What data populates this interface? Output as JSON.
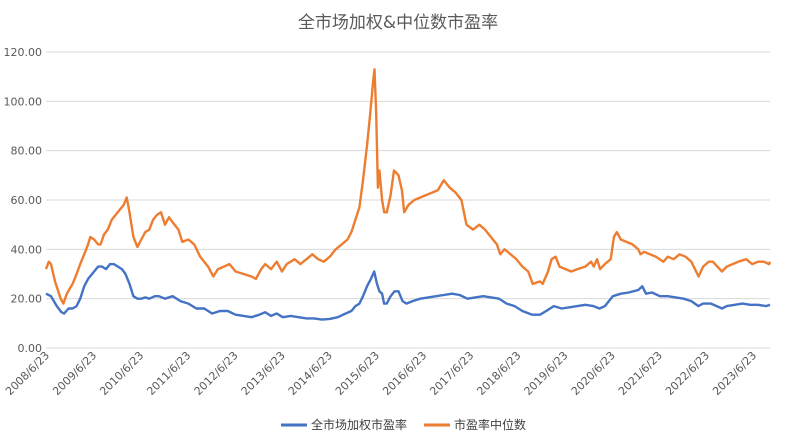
{
  "chart_data": {
    "type": "line",
    "title": "全市场加权&中位数市盈率",
    "xlabel": "",
    "ylabel": "",
    "ylim": [
      0,
      120
    ],
    "y_ticks": [
      "0.00",
      "20.00",
      "40.00",
      "60.00",
      "80.00",
      "100.00",
      "120.00"
    ],
    "x_ticks": [
      "2008/6/23",
      "2009/6/23",
      "2010/6/23",
      "2011/6/23",
      "2012/6/23",
      "2013/6/23",
      "2014/6/23",
      "2015/6/23",
      "2016/6/23",
      "2017/6/23",
      "2018/6/23",
      "2019/6/23",
      "2020/6/23",
      "2021/6/23",
      "2022/6/23",
      "2023/6/23"
    ],
    "x_range": [
      "2008-06-23",
      "2023-11-01"
    ],
    "grid": true,
    "legend_position": "bottom",
    "series": [
      {
        "name": "全市场加权市盈率",
        "color": "#4472c4",
        "points": [
          [
            "2008-06-23",
            22
          ],
          [
            "2008-08-01",
            21
          ],
          [
            "2008-09-15",
            17
          ],
          [
            "2008-10-20",
            14.5
          ],
          [
            "2008-11-10",
            14
          ],
          [
            "2008-12-15",
            16
          ],
          [
            "2009-01-15",
            16
          ],
          [
            "2009-02-15",
            17
          ],
          [
            "2009-03-15",
            20
          ],
          [
            "2009-04-15",
            25
          ],
          [
            "2009-05-15",
            28
          ],
          [
            "2009-06-15",
            30
          ],
          [
            "2009-07-01",
            31
          ],
          [
            "2009-08-01",
            33
          ],
          [
            "2009-09-01",
            33
          ],
          [
            "2009-10-01",
            32
          ],
          [
            "2009-11-01",
            34
          ],
          [
            "2009-12-01",
            34
          ],
          [
            "2010-01-01",
            33
          ],
          [
            "2010-02-01",
            32
          ],
          [
            "2010-03-01",
            30
          ],
          [
            "2010-04-01",
            26
          ],
          [
            "2010-05-01",
            21
          ],
          [
            "2010-06-01",
            20
          ],
          [
            "2010-07-01",
            20
          ],
          [
            "2010-08-01",
            20.5
          ],
          [
            "2010-09-01",
            20
          ],
          [
            "2010-10-15",
            21
          ],
          [
            "2010-11-15",
            21
          ],
          [
            "2011-01-01",
            20
          ],
          [
            "2011-03-01",
            21
          ],
          [
            "2011-05-01",
            19
          ],
          [
            "2011-07-01",
            18
          ],
          [
            "2011-09-01",
            16
          ],
          [
            "2011-11-01",
            16
          ],
          [
            "2012-01-01",
            14
          ],
          [
            "2012-03-01",
            15
          ],
          [
            "2012-05-01",
            15
          ],
          [
            "2012-07-01",
            13.5
          ],
          [
            "2012-09-01",
            13
          ],
          [
            "2012-11-01",
            12.5
          ],
          [
            "2013-01-01",
            13.5
          ],
          [
            "2013-02-15",
            14.5
          ],
          [
            "2013-04-01",
            13
          ],
          [
            "2013-05-15",
            14
          ],
          [
            "2013-07-01",
            12.5
          ],
          [
            "2013-09-01",
            13
          ],
          [
            "2013-11-01",
            12.5
          ],
          [
            "2014-01-01",
            12
          ],
          [
            "2014-03-01",
            12
          ],
          [
            "2014-05-01",
            11.5
          ],
          [
            "2014-07-01",
            11.8
          ],
          [
            "2014-09-01",
            12.5
          ],
          [
            "2014-11-01",
            14
          ],
          [
            "2014-12-15",
            15
          ],
          [
            "2015-01-15",
            17
          ],
          [
            "2015-02-15",
            18
          ],
          [
            "2015-03-15",
            21
          ],
          [
            "2015-04-15",
            25
          ],
          [
            "2015-05-15",
            28
          ],
          [
            "2015-06-10",
            31
          ],
          [
            "2015-07-01",
            26
          ],
          [
            "2015-07-20",
            23
          ],
          [
            "2015-08-10",
            22
          ],
          [
            "2015-08-25",
            18
          ],
          [
            "2015-09-15",
            18
          ],
          [
            "2015-10-15",
            21
          ],
          [
            "2015-11-15",
            23
          ],
          [
            "2015-12-15",
            23
          ],
          [
            "2016-01-15",
            19
          ],
          [
            "2016-02-15",
            18
          ],
          [
            "2016-04-01",
            19
          ],
          [
            "2016-06-01",
            20
          ],
          [
            "2016-08-01",
            20.5
          ],
          [
            "2016-10-01",
            21
          ],
          [
            "2016-12-01",
            21.5
          ],
          [
            "2017-02-01",
            22
          ],
          [
            "2017-04-01",
            21.5
          ],
          [
            "2017-06-01",
            20
          ],
          [
            "2017-08-01",
            20.5
          ],
          [
            "2017-10-01",
            21
          ],
          [
            "2017-12-01",
            20.5
          ],
          [
            "2018-02-01",
            20
          ],
          [
            "2018-04-01",
            18
          ],
          [
            "2018-06-01",
            17
          ],
          [
            "2018-08-01",
            15
          ],
          [
            "2018-10-15",
            13.5
          ],
          [
            "2018-12-15",
            13.5
          ],
          [
            "2019-02-01",
            15
          ],
          [
            "2019-04-01",
            17
          ],
          [
            "2019-06-01",
            16
          ],
          [
            "2019-08-01",
            16.5
          ],
          [
            "2019-10-01",
            17
          ],
          [
            "2019-12-01",
            17.5
          ],
          [
            "2020-02-01",
            17
          ],
          [
            "2020-03-20",
            16
          ],
          [
            "2020-05-01",
            17
          ],
          [
            "2020-07-01",
            21
          ],
          [
            "2020-09-01",
            22
          ],
          [
            "2020-11-01",
            22.5
          ],
          [
            "2021-01-15",
            23.5
          ],
          [
            "2021-02-15",
            25
          ],
          [
            "2021-03-15",
            22
          ],
          [
            "2021-05-01",
            22.5
          ],
          [
            "2021-07-01",
            21
          ],
          [
            "2021-09-01",
            21
          ],
          [
            "2021-11-01",
            20.5
          ],
          [
            "2022-01-01",
            20
          ],
          [
            "2022-03-01",
            19
          ],
          [
            "2022-04-25",
            17
          ],
          [
            "2022-06-01",
            18
          ],
          [
            "2022-08-01",
            18
          ],
          [
            "2022-10-25",
            16
          ],
          [
            "2022-12-01",
            17
          ],
          [
            "2023-02-01",
            17.5
          ],
          [
            "2023-04-01",
            18
          ],
          [
            "2023-06-01",
            17.5
          ],
          [
            "2023-08-01",
            17.5
          ],
          [
            "2023-10-01",
            17
          ],
          [
            "2023-11-01",
            17.5
          ]
        ]
      },
      {
        "name": "市盈率中位数",
        "color": "#ed7d31",
        "points": [
          [
            "2008-06-23",
            32
          ],
          [
            "2008-07-15",
            35
          ],
          [
            "2008-08-01",
            34
          ],
          [
            "2008-09-01",
            27
          ],
          [
            "2008-10-15",
            20
          ],
          [
            "2008-11-05",
            18
          ],
          [
            "2008-12-01",
            22
          ],
          [
            "2009-01-15",
            26
          ],
          [
            "2009-02-15",
            30
          ],
          [
            "2009-03-15",
            34
          ],
          [
            "2009-04-15",
            38
          ],
          [
            "2009-05-15",
            42
          ],
          [
            "2009-06-01",
            45
          ],
          [
            "2009-07-01",
            44
          ],
          [
            "2009-08-01",
            42
          ],
          [
            "2009-08-20",
            42
          ],
          [
            "2009-09-15",
            46
          ],
          [
            "2009-10-15",
            48
          ],
          [
            "2009-11-15",
            52
          ],
          [
            "2009-12-15",
            54
          ],
          [
            "2010-01-15",
            56
          ],
          [
            "2010-02-15",
            58
          ],
          [
            "2010-03-10",
            61
          ],
          [
            "2010-04-01",
            55
          ],
          [
            "2010-05-01",
            45
          ],
          [
            "2010-06-01",
            41
          ],
          [
            "2010-07-01",
            44
          ],
          [
            "2010-08-01",
            47
          ],
          [
            "2010-09-01",
            48
          ],
          [
            "2010-10-01",
            52
          ],
          [
            "2010-11-01",
            54
          ],
          [
            "2010-12-01",
            55
          ],
          [
            "2011-01-01",
            50
          ],
          [
            "2011-02-01",
            53
          ],
          [
            "2011-03-01",
            51
          ],
          [
            "2011-04-15",
            48
          ],
          [
            "2011-05-15",
            43
          ],
          [
            "2011-07-01",
            44
          ],
          [
            "2011-08-15",
            42
          ],
          [
            "2011-10-01",
            37
          ],
          [
            "2011-12-01",
            33
          ],
          [
            "2012-01-10",
            29
          ],
          [
            "2012-02-15",
            32
          ],
          [
            "2012-04-01",
            33
          ],
          [
            "2012-05-15",
            34
          ],
          [
            "2012-07-01",
            31
          ],
          [
            "2012-09-01",
            30
          ],
          [
            "2012-11-01",
            29
          ],
          [
            "2012-12-05",
            28
          ],
          [
            "2013-01-15",
            32
          ],
          [
            "2013-02-15",
            34
          ],
          [
            "2013-04-01",
            32
          ],
          [
            "2013-05-15",
            35
          ],
          [
            "2013-06-25",
            31
          ],
          [
            "2013-08-01",
            34
          ],
          [
            "2013-10-01",
            36
          ],
          [
            "2013-11-15",
            34
          ],
          [
            "2014-01-01",
            36
          ],
          [
            "2014-02-15",
            38
          ],
          [
            "2014-04-01",
            36
          ],
          [
            "2014-05-15",
            35
          ],
          [
            "2014-07-01",
            37
          ],
          [
            "2014-08-15",
            40
          ],
          [
            "2014-10-01",
            42
          ],
          [
            "2014-11-15",
            44
          ],
          [
            "2014-12-15",
            47
          ],
          [
            "2015-01-15",
            52
          ],
          [
            "2015-02-15",
            57
          ],
          [
            "2015-03-15",
            68
          ],
          [
            "2015-04-15",
            82
          ],
          [
            "2015-05-10",
            95
          ],
          [
            "2015-06-01",
            108
          ],
          [
            "2015-06-12",
            113
          ],
          [
            "2015-06-25",
            95
          ],
          [
            "2015-07-08",
            65
          ],
          [
            "2015-07-20",
            72
          ],
          [
            "2015-08-10",
            60
          ],
          [
            "2015-08-26",
            55
          ],
          [
            "2015-09-15",
            55
          ],
          [
            "2015-10-15",
            62
          ],
          [
            "2015-11-10",
            72
          ],
          [
            "2015-12-15",
            70
          ],
          [
            "2016-01-10",
            64
          ],
          [
            "2016-01-28",
            55
          ],
          [
            "2016-03-01",
            58
          ],
          [
            "2016-04-15",
            60
          ],
          [
            "2016-06-01",
            61
          ],
          [
            "2016-07-15",
            62
          ],
          [
            "2016-09-01",
            63
          ],
          [
            "2016-10-15",
            64
          ],
          [
            "2016-11-30",
            68
          ],
          [
            "2017-01-15",
            65
          ],
          [
            "2017-03-01",
            63
          ],
          [
            "2017-04-15",
            60
          ],
          [
            "2017-05-25",
            50
          ],
          [
            "2017-07-15",
            48
          ],
          [
            "2017-09-01",
            50
          ],
          [
            "2017-10-15",
            48
          ],
          [
            "2017-12-15",
            44
          ],
          [
            "2018-01-15",
            42
          ],
          [
            "2018-02-10",
            38
          ],
          [
            "2018-03-15",
            40
          ],
          [
            "2018-05-01",
            38
          ],
          [
            "2018-06-15",
            36
          ],
          [
            "2018-08-01",
            33
          ],
          [
            "2018-09-15",
            31
          ],
          [
            "2018-10-20",
            26
          ],
          [
            "2018-12-15",
            27
          ],
          [
            "2019-01-05",
            26
          ],
          [
            "2019-02-15",
            31
          ],
          [
            "2019-03-15",
            36
          ],
          [
            "2019-04-15",
            37
          ],
          [
            "2019-05-15",
            33
          ],
          [
            "2019-07-01",
            32
          ],
          [
            "2019-08-15",
            31
          ],
          [
            "2019-10-01",
            32
          ],
          [
            "2019-12-01",
            33
          ],
          [
            "2020-01-15",
            35
          ],
          [
            "2020-02-05",
            33
          ],
          [
            "2020-03-01",
            36
          ],
          [
            "2020-03-25",
            32
          ],
          [
            "2020-05-01",
            34
          ],
          [
            "2020-06-15",
            36
          ],
          [
            "2020-07-10",
            45
          ],
          [
            "2020-08-01",
            47
          ],
          [
            "2020-09-01",
            44
          ],
          [
            "2020-10-15",
            43
          ],
          [
            "2020-12-01",
            42
          ],
          [
            "2021-01-15",
            40
          ],
          [
            "2021-02-01",
            38
          ],
          [
            "2021-03-01",
            39
          ],
          [
            "2021-04-15",
            38
          ],
          [
            "2021-06-01",
            37
          ],
          [
            "2021-07-28",
            35
          ],
          [
            "2021-09-01",
            37
          ],
          [
            "2021-10-15",
            36
          ],
          [
            "2021-12-01",
            38
          ],
          [
            "2022-01-15",
            37
          ],
          [
            "2022-03-01",
            35
          ],
          [
            "2022-04-27",
            29
          ],
          [
            "2022-06-01",
            33
          ],
          [
            "2022-07-15",
            35
          ],
          [
            "2022-08-15",
            35
          ],
          [
            "2022-10-25",
            31
          ],
          [
            "2022-12-01",
            33
          ],
          [
            "2023-01-15",
            34
          ],
          [
            "2023-03-01",
            35
          ],
          [
            "2023-05-01",
            36
          ],
          [
            "2023-06-15",
            34
          ],
          [
            "2023-08-01",
            35
          ],
          [
            "2023-09-15",
            35
          ],
          [
            "2023-10-25",
            34
          ],
          [
            "2023-11-01",
            35
          ]
        ]
      }
    ]
  }
}
